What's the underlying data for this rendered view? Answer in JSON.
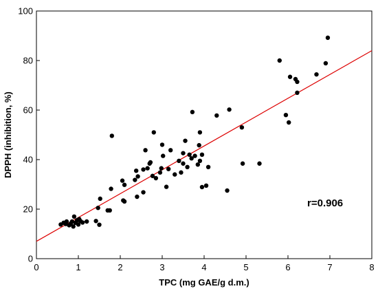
{
  "chart_data": {
    "type": "scatter",
    "xlabel": "TPC (mg GAE/g d.m.)",
    "ylabel": "DPPH (inhibition, %)",
    "xlim": [
      0,
      8
    ],
    "ylim": [
      0,
      100
    ],
    "x_ticks": [
      "0",
      "1",
      "2",
      "3",
      "4",
      "5",
      "6",
      "7",
      "8"
    ],
    "y_ticks": [
      "0",
      "20",
      "40",
      "60",
      "80",
      "100"
    ],
    "grid": false,
    "annotation": "r=0.906",
    "trendline": {
      "x": [
        0,
        8
      ],
      "y": [
        7,
        84
      ],
      "color": "#dd0000"
    },
    "point_color": "#000000",
    "points": [
      [
        0.58,
        13.8
      ],
      [
        0.65,
        14.5
      ],
      [
        0.7,
        14.0
      ],
      [
        0.72,
        15.0
      ],
      [
        0.78,
        13.5
      ],
      [
        0.82,
        14.2
      ],
      [
        0.85,
        15.0
      ],
      [
        0.88,
        13.0
      ],
      [
        0.9,
        17.0
      ],
      [
        0.93,
        14.5
      ],
      [
        0.97,
        15.5
      ],
      [
        1.0,
        13.8
      ],
      [
        1.02,
        16.0
      ],
      [
        1.05,
        15.2
      ],
      [
        1.1,
        14.6
      ],
      [
        1.2,
        15.0
      ],
      [
        1.42,
        15.2
      ],
      [
        1.47,
        20.5
      ],
      [
        1.5,
        13.7
      ],
      [
        1.52,
        24.2
      ],
      [
        1.7,
        19.5
      ],
      [
        1.75,
        19.5
      ],
      [
        1.78,
        28.2
      ],
      [
        1.8,
        49.6
      ],
      [
        2.05,
        31.5
      ],
      [
        2.07,
        23.5
      ],
      [
        2.1,
        23.1
      ],
      [
        2.1,
        29.8
      ],
      [
        2.35,
        31.8
      ],
      [
        2.38,
        35.5
      ],
      [
        2.4,
        25.0
      ],
      [
        2.42,
        33.2
      ],
      [
        2.55,
        26.8
      ],
      [
        2.55,
        36.0
      ],
      [
        2.6,
        43.8
      ],
      [
        2.65,
        36.5
      ],
      [
        2.7,
        38.4
      ],
      [
        2.72,
        38.9
      ],
      [
        2.77,
        33.4
      ],
      [
        2.8,
        51.0
      ],
      [
        2.85,
        32.5
      ],
      [
        2.95,
        34.8
      ],
      [
        2.98,
        36.5
      ],
      [
        3.0,
        46.0
      ],
      [
        3.02,
        41.5
      ],
      [
        3.1,
        29.0
      ],
      [
        3.15,
        36.2
      ],
      [
        3.2,
        43.8
      ],
      [
        3.3,
        34.0
      ],
      [
        3.4,
        39.5
      ],
      [
        3.45,
        34.8
      ],
      [
        3.5,
        38.4
      ],
      [
        3.5,
        42.6
      ],
      [
        3.55,
        47.6
      ],
      [
        3.6,
        37.0
      ],
      [
        3.65,
        42.0
      ],
      [
        3.7,
        40.5
      ],
      [
        3.72,
        59.2
      ],
      [
        3.78,
        41.5
      ],
      [
        3.85,
        38.0
      ],
      [
        3.88,
        45.8
      ],
      [
        3.9,
        39.5
      ],
      [
        3.9,
        51.0
      ],
      [
        3.95,
        28.9
      ],
      [
        3.95,
        42.0
      ],
      [
        4.05,
        29.5
      ],
      [
        4.1,
        37.0
      ],
      [
        4.3,
        57.8
      ],
      [
        4.55,
        27.5
      ],
      [
        4.6,
        60.2
      ],
      [
        4.9,
        53.0
      ],
      [
        4.92,
        38.4
      ],
      [
        5.32,
        38.4
      ],
      [
        5.8,
        80.0
      ],
      [
        5.95,
        58.0
      ],
      [
        6.02,
        55.0
      ],
      [
        6.05,
        73.4
      ],
      [
        6.18,
        72.5
      ],
      [
        6.22,
        67.0
      ],
      [
        6.22,
        71.4
      ],
      [
        6.68,
        74.4
      ],
      [
        6.9,
        78.9
      ],
      [
        6.95,
        89.2
      ]
    ]
  }
}
